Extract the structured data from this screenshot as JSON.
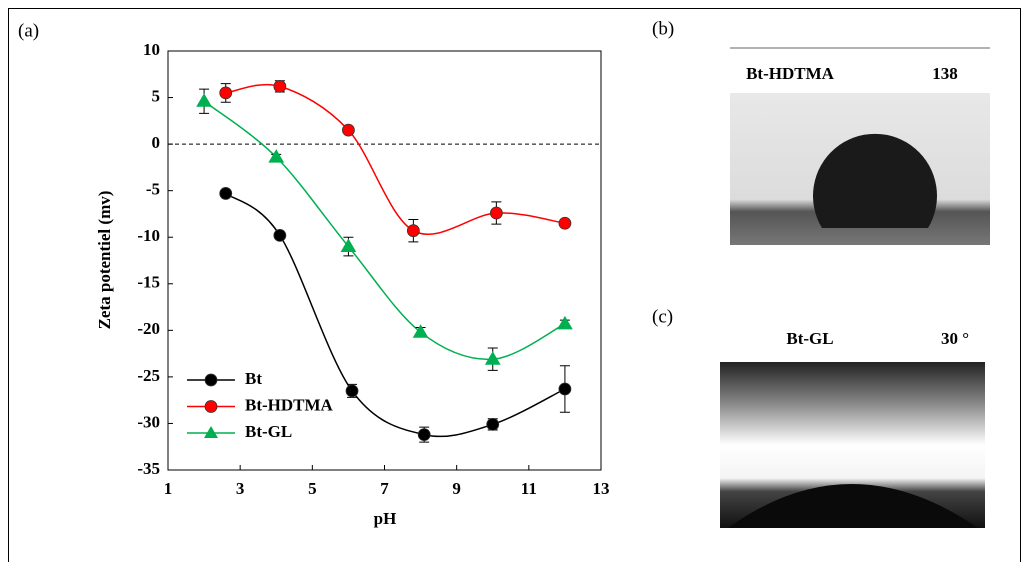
{
  "panel_labels": [
    "(a)",
    "(b)",
    "(c)"
  ],
  "chart_data": {
    "type": "line",
    "x_label": "pH",
    "y_label": "Zeta potentiel (mv)",
    "xlim": [
      1,
      13
    ],
    "xticks": [
      1,
      3,
      5,
      7,
      9,
      11,
      13
    ],
    "ylim": [
      -35,
      10
    ],
    "yticks": [
      -35,
      -30,
      -25,
      -20,
      -15,
      -10,
      -5,
      0,
      5,
      10
    ],
    "reference_line": 0,
    "smooth": true,
    "legend": "lower left",
    "series": [
      {
        "name": "Bt",
        "color": "#000000",
        "marker": "circle",
        "x": [
          2.6,
          4.1,
          6.1,
          8.1,
          10,
          12
        ],
        "values": [
          -5.3,
          -9.8,
          -26.5,
          -31.2,
          -30.1,
          -26.3
        ],
        "errors": [
          0.3,
          0.3,
          0.7,
          0.8,
          0.6,
          2.5
        ]
      },
      {
        "name": "Bt-HDTMA",
        "color": "#ff0000",
        "marker": "circle",
        "x": [
          2.6,
          4.1,
          6,
          7.8,
          10.1,
          12
        ],
        "values": [
          5.5,
          6.2,
          1.5,
          -9.3,
          -7.4,
          -8.5
        ],
        "errors": [
          1,
          0.6,
          0.3,
          1.2,
          1.2,
          0.3
        ]
      },
      {
        "name": "Bt-GL",
        "color": "#00b050",
        "marker": "triangle",
        "x": [
          2,
          4,
          6,
          8,
          10,
          12
        ],
        "values": [
          4.6,
          -1.4,
          -11,
          -20.2,
          -23.1,
          -19.3
        ],
        "errors": [
          1.3,
          0.3,
          1,
          0.5,
          1.2,
          0.4
        ]
      }
    ]
  },
  "images": [
    {
      "label": "Bt-HDTMA",
      "angle": "138"
    },
    {
      "label": "Bt-GL",
      "angle": "30 °"
    }
  ]
}
